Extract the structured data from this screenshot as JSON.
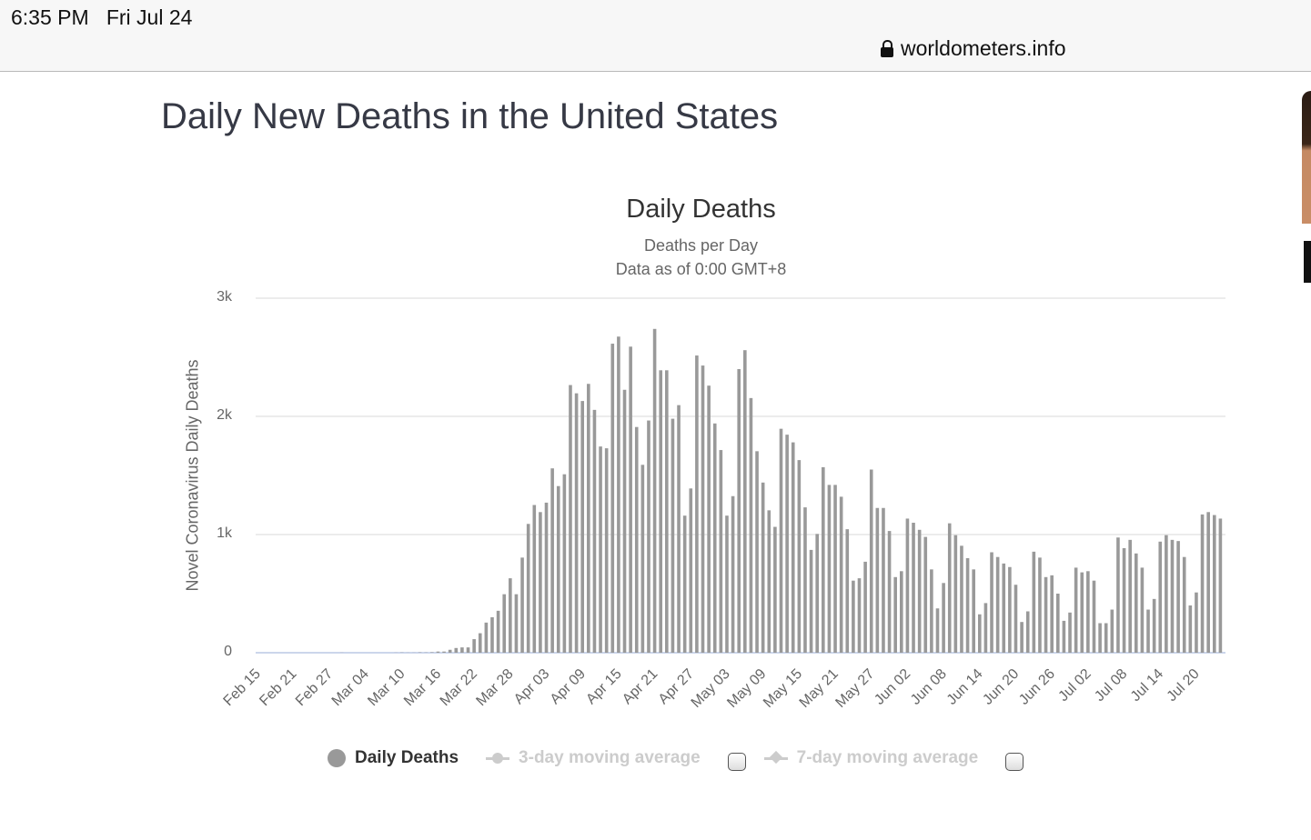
{
  "statusbar": {
    "time": "6:35 PM",
    "date": "Fri Jul 24",
    "url": "worldometers.info",
    "lock_icon": "lock-icon"
  },
  "page": {
    "title": "Daily New Deaths in the United States"
  },
  "legend": {
    "items": [
      {
        "label": "Daily Deaths",
        "active": true,
        "icon": "circle-marker-icon"
      },
      {
        "label": "3-day moving average",
        "active": false,
        "icon": "circle-line-marker-icon"
      },
      {
        "label": "7-day moving average",
        "active": false,
        "icon": "diamond-line-marker-icon"
      }
    ]
  },
  "chart_data": {
    "type": "bar",
    "title": "Daily Deaths",
    "subtitle": "Deaths per Day",
    "subtitle2": "Data as of 0:00 GMT+8",
    "xlabel": "",
    "ylabel": "Novel Coronavirus Daily Deaths",
    "ylim": [
      0,
      3000
    ],
    "yticks": [
      {
        "v": 0,
        "label": "0"
      },
      {
        "v": 1000,
        "label": "1k"
      },
      {
        "v": 2000,
        "label": "2k"
      },
      {
        "v": 3000,
        "label": "3k"
      }
    ],
    "grid": true,
    "legend_position": "bottom",
    "start_date": "Feb 15",
    "xtick_labels": [
      "Feb 15",
      "Feb 21",
      "Feb 27",
      "Mar 04",
      "Mar 10",
      "Mar 16",
      "Mar 22",
      "Mar 28",
      "Apr 03",
      "Apr 09",
      "Apr 15",
      "Apr 21",
      "Apr 27",
      "May 03",
      "May 09",
      "May 15",
      "May 21",
      "May 27",
      "Jun 02",
      "Jun 08",
      "Jun 14",
      "Jun 20",
      "Jun 26",
      "Jul 02",
      "Jul 08",
      "Jul 14",
      "Jul 20"
    ],
    "xtick_every": 6,
    "series": [
      {
        "name": "Daily Deaths",
        "color": "#999999",
        "values": [
          0,
          0,
          0,
          0,
          0,
          0,
          0,
          0,
          0,
          0,
          0,
          0,
          0,
          0,
          1,
          0,
          0,
          0,
          0,
          0,
          0,
          0,
          0,
          1,
          2,
          1,
          1,
          3,
          2,
          4,
          10,
          10,
          25,
          40,
          45,
          45,
          115,
          165,
          255,
          300,
          355,
          495,
          630,
          495,
          805,
          1090,
          1250,
          1190,
          1270,
          1560,
          1410,
          1510,
          2265,
          2195,
          2130,
          2275,
          2055,
          1745,
          1730,
          2615,
          2675,
          2225,
          2590,
          1910,
          1590,
          1965,
          2740,
          2390,
          2390,
          1980,
          2095,
          1160,
          1390,
          2515,
          2430,
          2260,
          1940,
          1715,
          1160,
          1325,
          2400,
          2560,
          2155,
          1705,
          1440,
          1205,
          1065,
          1895,
          1845,
          1780,
          1630,
          1230,
          870,
          1005,
          1570,
          1420,
          1420,
          1320,
          1045,
          610,
          630,
          770,
          1550,
          1225,
          1225,
          1030,
          640,
          690,
          1135,
          1100,
          1040,
          980,
          705,
          375,
          590,
          1095,
          995,
          905,
          800,
          705,
          325,
          420,
          850,
          810,
          755,
          725,
          575,
          260,
          350,
          855,
          805,
          640,
          655,
          500,
          270,
          340,
          720,
          680,
          690,
          610,
          250,
          250,
          365,
          975,
          885,
          955,
          840,
          720,
          365,
          455,
          940,
          995,
          955,
          945,
          810,
          400,
          510,
          1170,
          1190,
          1165,
          1135
        ]
      }
    ]
  }
}
